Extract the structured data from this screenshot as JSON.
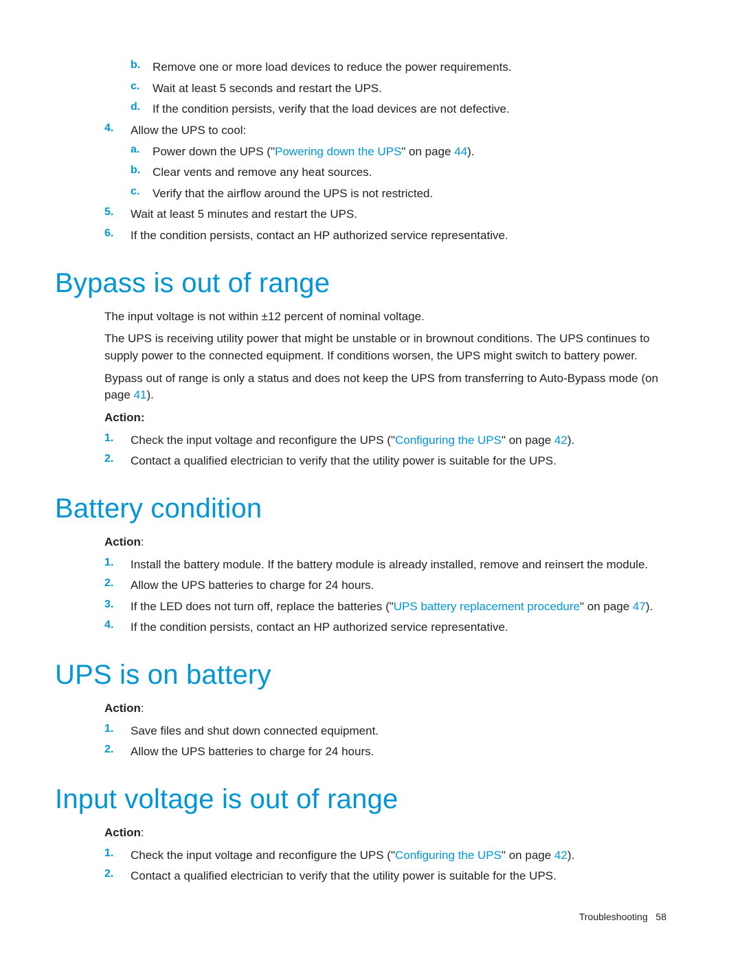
{
  "colors": {
    "accent": "#0096d6",
    "text": "#222222",
    "background": "#ffffff"
  },
  "typography": {
    "body_font": "Arial",
    "body_size_pt": 12,
    "heading_size_pt": 30,
    "heading_weight": "300"
  },
  "top_list": {
    "alpha_b": "Remove one or more load devices to reduce the power requirements.",
    "alpha_c": "Wait at least 5 seconds and restart the UPS.",
    "alpha_d": "If the condition persists, verify that the load devices are not defective.",
    "n4": "Allow the UPS to cool:",
    "n4a_pre": "Power down the UPS (\"",
    "n4a_link": "Powering down the UPS",
    "n4a_mid": "\" on page ",
    "n4a_page": "44",
    "n4a_end": ").",
    "n4b": "Clear vents and remove any heat sources.",
    "n4c": "Verify that the airflow around the UPS is not restricted.",
    "n5": "Wait at least 5 minutes and restart the UPS.",
    "n6": "If the condition persists, contact an HP authorized service representative."
  },
  "sec_bypass": {
    "title": "Bypass is out of range",
    "p1": "The input voltage is not within ±12 percent of nominal voltage.",
    "p2": "The UPS is receiving utility power that might be unstable or in brownout conditions. The UPS continues to supply power to the connected equipment. If conditions worsen, the UPS might switch to battery power.",
    "p3_pre": "Bypass out of range is only a status and does not keep the UPS from transferring to Auto-Bypass mode (on page ",
    "p3_page": "41",
    "p3_end": ").",
    "action": "Action:",
    "n1_pre": "Check the input voltage and reconfigure the UPS (\"",
    "n1_link": "Configuring the UPS",
    "n1_mid": "\" on page ",
    "n1_page": "42",
    "n1_end": ").",
    "n2": "Contact a qualified electrician to verify that the utility power is suitable for the UPS."
  },
  "sec_battery": {
    "title": "Battery condition",
    "action": "Action",
    "colon": ":",
    "n1": "Install the battery module. If the battery module is already installed, remove and reinsert the module.",
    "n2": "Allow the UPS batteries to charge for 24 hours.",
    "n3_pre": "If the LED does not turn off, replace the batteries (\"",
    "n3_link": "UPS battery replacement procedure",
    "n3_mid": "\" on page ",
    "n3_page": "47",
    "n3_end": ").",
    "n4": "If the condition persists, contact an HP authorized service representative."
  },
  "sec_onbatt": {
    "title": "UPS is on battery",
    "action": "Action",
    "colon": ":",
    "n1": "Save files and shut down connected equipment.",
    "n2": "Allow the UPS batteries to charge for 24 hours."
  },
  "sec_input": {
    "title": "Input voltage is out of range",
    "action": "Action",
    "colon": ":",
    "n1_pre": "Check the input voltage and reconfigure the UPS (\"",
    "n1_link": "Configuring the UPS",
    "n1_mid": "\" on page ",
    "n1_page": "42",
    "n1_end": ").",
    "n2": "Contact a qualified electrician to verify that the utility power is suitable for the UPS."
  },
  "footer": {
    "label": "Troubleshooting",
    "page": "58"
  },
  "markers": {
    "b": "b.",
    "c": "c.",
    "d": "d.",
    "a": "a.",
    "n1": "1.",
    "n2": "2.",
    "n3": "3.",
    "n4": "4.",
    "n5": "5.",
    "n6": "6."
  }
}
